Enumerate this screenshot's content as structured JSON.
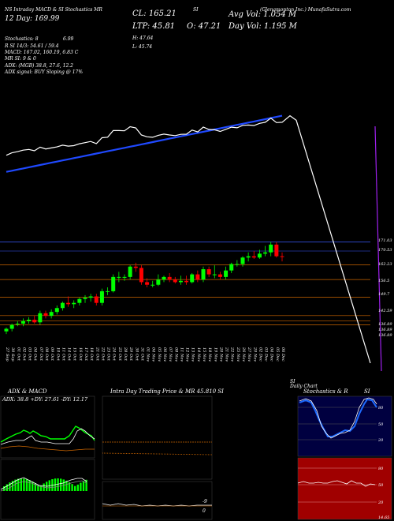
{
  "header": {
    "source_line": "(Glenamonton Inc.) MunafaSutra.com",
    "chart_tag": "SI",
    "title_line": "SI",
    "tagline": "NS Intraday MACD & SI Stochastics MR",
    "close_label": "CL: 165.21",
    "ltp_label": "LTP: 45.81",
    "open_label": "O: 47.21",
    "high_label": "H: 47.64",
    "low_label": "L: 45.74",
    "avg_vol": "Avg Vol: 1.054 M",
    "day_vol": "Day Vol: 1.195 M",
    "prev_line": "12 Day: 169.99",
    "stoch_line": "Stochastics: 8",
    "stoch_val": "6.99",
    "si_line": "R    SI 14/3: 54.61 / 59.4",
    "macd_line": "MACD: 167.02, 160.19, 6.83 C",
    "mr_line": "MR    SI: 9 & 0",
    "adx_line": "ADX:                      (MGB) 38.8, 27.6, 12.2",
    "adx_signal": "ADX  signal:                    BUY Sloping @ 17%"
  },
  "colors": {
    "up": "#00ff00",
    "down": "#ff0000",
    "ma": "#1f49ff",
    "price_line": "#ffffff",
    "level": "#cc6600",
    "ref_line": "#3a5bff"
  },
  "chart_data": [
    {
      "type": "candlestick",
      "dates": [
        "27 Sep",
        "30 Sep",
        "01 Oct",
        "02 Oct",
        "03 Oct",
        "04 Oct",
        "07 Oct",
        "08 Oct",
        "09 Oct",
        "10 Oct",
        "11 Oct",
        "14 Oct",
        "15 Oct",
        "16 Oct",
        "17 Oct",
        "18 Oct",
        "21 Oct",
        "22 Oct",
        "23 Oct",
        "24 Oct",
        "25 Oct",
        "28 Oct",
        "29 Oct",
        "30 Oct",
        "31 Oct",
        "01 Nov",
        "04 Nov",
        "05 Nov",
        "06 Nov",
        "07 Nov",
        "08 Nov",
        "11 Nov",
        "12 Nov",
        "13 Nov",
        "14 Nov",
        "15 Nov",
        "18 Nov",
        "19 Nov",
        "20 Nov",
        "21 Nov",
        "22 Nov",
        "25 Nov",
        "26 Nov",
        "27 Nov",
        "29 Nov",
        "02 Dec",
        "03 Dec",
        "04 Dec",
        "05 Dec",
        "06 Dec"
      ],
      "open": [
        136.5,
        137.5,
        139.5,
        139.5,
        140.5,
        141.0,
        140.0,
        143.5,
        142.5,
        144.0,
        145.5,
        147.5,
        147.0,
        147.5,
        149.0,
        149.5,
        150.0,
        147.5,
        152.0,
        152.0,
        157.5,
        157.5,
        157.5,
        161.5,
        161.0,
        155.5,
        154.5,
        154.5,
        156.5,
        157.5,
        156.5,
        155.5,
        156.0,
        155.5,
        158.5,
        156.5,
        160.5,
        158.5,
        158.5,
        157.5,
        160.0,
        162.5,
        162.5,
        165.0,
        165.5,
        165.0,
        166.5,
        167.0,
        170.0,
        165.5
      ],
      "high": [
        138.0,
        139.5,
        140.5,
        141.5,
        142.0,
        142.5,
        144.5,
        144.5,
        145.0,
        146.5,
        148.0,
        150.0,
        148.5,
        149.5,
        150.5,
        151.0,
        151.0,
        153.0,
        153.5,
        158.5,
        159.5,
        158.5,
        162.0,
        163.0,
        162.0,
        157.0,
        156.0,
        158.5,
        158.0,
        159.0,
        157.5,
        158.0,
        158.0,
        159.0,
        160.0,
        161.5,
        161.5,
        162.0,
        159.5,
        161.5,
        163.0,
        164.0,
        165.5,
        167.0,
        167.5,
        168.0,
        169.5,
        171.0,
        171.0,
        167.0
      ],
      "low": [
        135.5,
        136.5,
        138.5,
        138.5,
        139.5,
        139.5,
        139.0,
        141.5,
        141.5,
        143.0,
        144.5,
        146.0,
        145.5,
        146.5,
        147.5,
        148.0,
        146.5,
        146.5,
        150.5,
        151.5,
        155.5,
        156.0,
        156.5,
        159.5,
        154.5,
        153.5,
        153.5,
        154.0,
        155.5,
        155.5,
        155.0,
        154.5,
        154.5,
        155.0,
        155.5,
        155.5,
        157.5,
        157.0,
        156.5,
        156.5,
        159.0,
        161.5,
        161.5,
        163.5,
        164.5,
        164.5,
        165.5,
        165.5,
        165.0,
        163.5
      ],
      "close": [
        137.5,
        139.0,
        139.5,
        140.5,
        141.0,
        140.0,
        143.5,
        142.5,
        144.0,
        145.5,
        147.5,
        147.0,
        147.5,
        149.0,
        149.5,
        150.0,
        147.5,
        152.0,
        152.0,
        157.5,
        157.5,
        157.5,
        161.5,
        161.0,
        155.5,
        154.5,
        154.5,
        156.5,
        157.5,
        156.5,
        155.5,
        156.0,
        155.5,
        158.5,
        156.5,
        160.5,
        158.5,
        158.5,
        157.5,
        160.0,
        162.5,
        162.5,
        165.0,
        165.5,
        165.0,
        166.5,
        167.0,
        170.0,
        165.5,
        165.2
      ],
      "ma_values": [
        120,
        121,
        122,
        123,
        124,
        125,
        126,
        127,
        128,
        129,
        130,
        131,
        132,
        133,
        134,
        135,
        136,
        137,
        138,
        139,
        140,
        141,
        142,
        143,
        144,
        145,
        146,
        147,
        148,
        149,
        150,
        151,
        152,
        153,
        154,
        155,
        156,
        157,
        158,
        159,
        160,
        161,
        162,
        163,
        164,
        165,
        166,
        167,
        168,
        169
      ],
      "right_axis_labels": [
        "171.03",
        "170.53",
        "162.23",
        "156.5",
        "149.7",
        "142.59",
        "136.89",
        "136.89",
        "136.89"
      ],
      "xlabel": "",
      "ylabel": ""
    }
  ],
  "panels": {
    "adx_title": "ADX  & MACD",
    "adx_readout": "ADX: 38.8 +DY: 27.61 -DY: 12.17",
    "intraday_title": "Intra  Day Trading Price  & MR   45.810   SI",
    "stoch_title": "Stochastics & R",
    "stoch_tag": "SI",
    "stoch_ticks": [
      "80",
      "50",
      "20"
    ],
    "rsi_ticks": [
      "80",
      "50",
      "20"
    ],
    "intraday_tick_a": "-9",
    "intraday_tick_b": "0",
    "bottom_num": "14.65"
  },
  "footer": {
    "date_left": "SI",
    "daily_label": "Daily Chart"
  }
}
